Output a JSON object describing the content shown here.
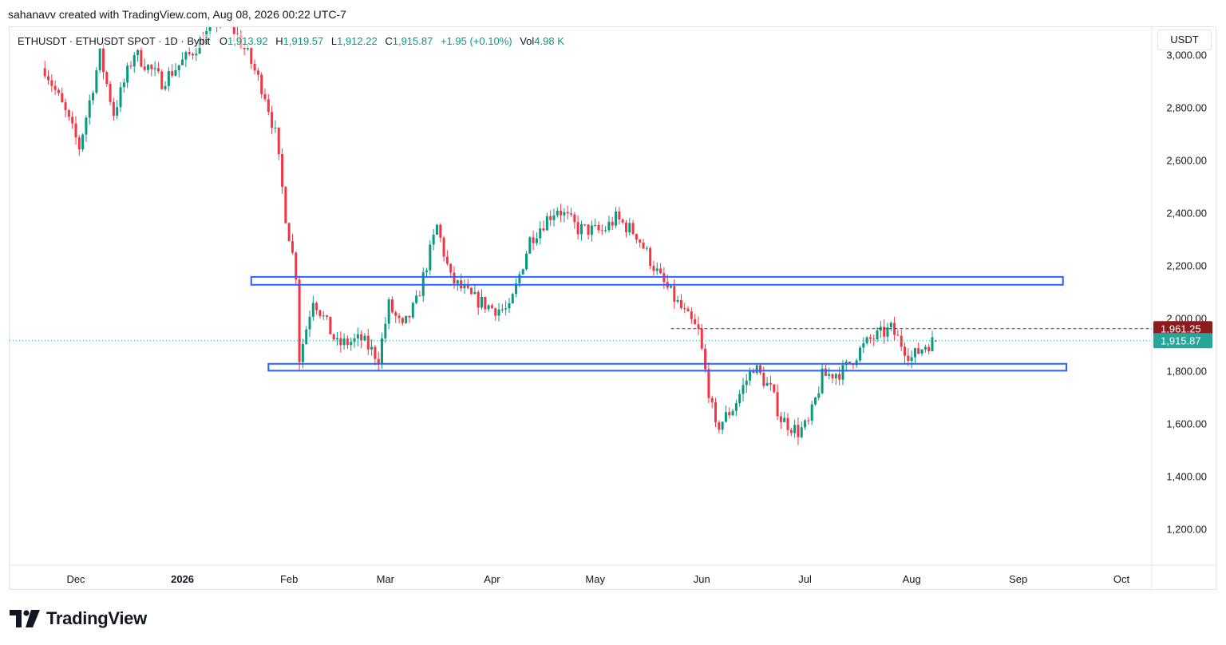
{
  "credit": "sahanavv created with TradingView.com, Aug 08, 2026 00:22 UTC-7",
  "legend": {
    "symbol": "ETHUSDT · ETHUSDT SPOT · 1D · Bybit",
    "o_label": "O",
    "o": "1,913.92",
    "h_label": "H",
    "h": "1,919.57",
    "l_label": "L",
    "l": "1,912.22",
    "c_label": "C",
    "c": "1,915.87",
    "change": "+1.95 (+0.10%)",
    "vol_label": "Vol",
    "vol": "4.98 K"
  },
  "currency": "USDT",
  "brand": "TradingView",
  "colors": {
    "up": "#089981",
    "down": "#f23645",
    "zone": "#2962ff",
    "last": "#26a69a",
    "level": "#8e1c1f"
  },
  "chart_data": {
    "type": "candlestick",
    "y_ticks": [
      "3,000.00",
      "2,800.00",
      "2,600.00",
      "2,400.00",
      "2,200.00",
      "2,000.00",
      "1,800.00",
      "1,600.00",
      "1,400.00",
      "1,200.00"
    ],
    "x_ticks": [
      "Dec",
      "2026",
      "Feb",
      "Mar",
      "Apr",
      "May",
      "Jun",
      "Jul",
      "Aug",
      "Sep",
      "Oct"
    ],
    "ylim": [
      1070,
      3050
    ],
    "last_price": {
      "value": 1915.87,
      "label": "1,915.87"
    },
    "horizontal_level": {
      "value": 1961.25,
      "label": "1,961.25",
      "from": "2026-05-23"
    },
    "zones": [
      {
        "from": "2026-01-21",
        "to": "2026-09-14",
        "low": 2128,
        "high": 2158
      },
      {
        "from": "2026-01-26",
        "to": "2026-09-15",
        "low": 1802,
        "high": 1828
      }
    ],
    "candles_note": "daily OHLC, path estimated from chart",
    "anchors": [
      [
        "2025-11-22",
        2950
      ],
      [
        "2025-11-28",
        2780
      ],
      [
        "2025-12-02",
        2650
      ],
      [
        "2025-12-08",
        3000
      ],
      [
        "2025-12-12",
        2780
      ],
      [
        "2025-12-18",
        3010
      ],
      [
        "2025-12-26",
        2900
      ],
      [
        "2026-01-03",
        3000
      ],
      [
        "2026-01-13",
        3160
      ],
      [
        "2026-01-20",
        3000
      ],
      [
        "2026-01-25",
        2850
      ],
      [
        "2026-01-28",
        2700
      ],
      [
        "2026-01-31",
        2390
      ],
      [
        "2026-02-03",
        2170
      ],
      [
        "2026-02-04",
        1850
      ],
      [
        "2026-02-08",
        2080
      ],
      [
        "2026-02-15",
        1900
      ],
      [
        "2026-02-22",
        1920
      ],
      [
        "2026-02-27",
        1850
      ],
      [
        "2026-03-02",
        2050
      ],
      [
        "2026-03-06",
        1960
      ],
      [
        "2026-03-10",
        2060
      ],
      [
        "2026-03-16",
        2350
      ],
      [
        "2026-03-20",
        2150
      ],
      [
        "2026-03-26",
        2080
      ],
      [
        "2026-04-01",
        2040
      ],
      [
        "2026-04-06",
        2030
      ],
      [
        "2026-04-12",
        2300
      ],
      [
        "2026-04-17",
        2380
      ],
      [
        "2026-04-20",
        2420
      ],
      [
        "2026-04-26",
        2340
      ],
      [
        "2026-05-03",
        2330
      ],
      [
        "2026-05-07",
        2380
      ],
      [
        "2026-05-13",
        2320
      ],
      [
        "2026-05-20",
        2150
      ],
      [
        "2026-05-28",
        2000
      ],
      [
        "2026-05-31",
        1950
      ],
      [
        "2026-06-02",
        1800
      ],
      [
        "2026-06-05",
        1580
      ],
      [
        "2026-06-10",
        1660
      ],
      [
        "2026-06-16",
        1820
      ],
      [
        "2026-06-21",
        1730
      ],
      [
        "2026-06-24",
        1620
      ],
      [
        "2026-06-29",
        1570
      ],
      [
        "2026-07-02",
        1600
      ],
      [
        "2026-07-06",
        1780
      ],
      [
        "2026-07-12",
        1800
      ],
      [
        "2026-07-17",
        1880
      ],
      [
        "2026-07-20",
        1920
      ],
      [
        "2026-07-26",
        1960
      ],
      [
        "2026-08-01",
        1850
      ],
      [
        "2026-08-05",
        1900
      ],
      [
        "2026-08-08",
        1915.87
      ]
    ]
  }
}
